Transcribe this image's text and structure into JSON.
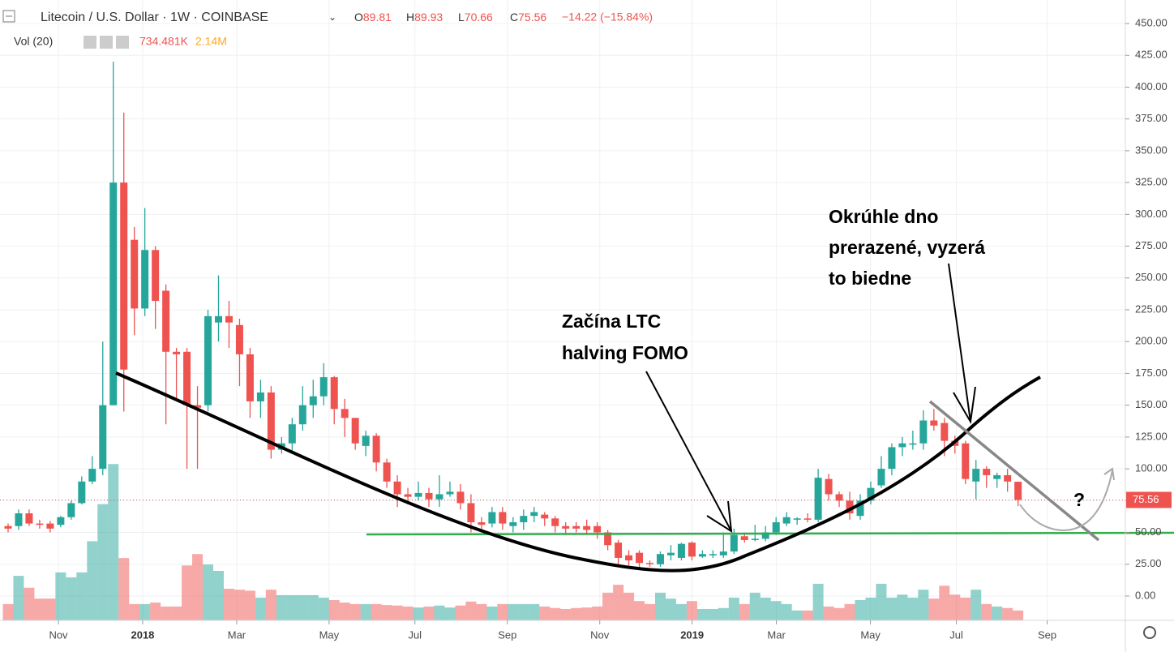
{
  "header": {
    "symbol": "Litecoin / U.S. Dollar · 1W · COINBASE",
    "ohlc": [
      {
        "label": "O",
        "value": 89.81
      },
      {
        "label": "H",
        "value": 89.93
      },
      {
        "label": "L",
        "value": 70.66
      },
      {
        "label": "C",
        "value": 75.56
      }
    ],
    "change": "−14.22 (−15.84%)",
    "volume_label": "Vol (20)",
    "volume_value": "734.481K",
    "volume_ma": "2.14M"
  },
  "annotations": {
    "fomo": [
      "Začína LTC",
      "halving FOMO"
    ],
    "bottom": [
      "Okrúhle dno",
      "prerazené, vyzerá",
      "to biedne"
    ],
    "question": "?"
  },
  "chart_data": {
    "type": "candlestick",
    "up_color": "#26a69a",
    "down_color": "#ef5350",
    "last_price": 75.56,
    "grid": true,
    "xlim": [
      -0.77,
      106.2
    ],
    "xticks": [
      {
        "value": 4.78,
        "label": "Nov"
      },
      {
        "value": 12.79,
        "label": "2018"
      },
      {
        "value": 21.73,
        "label": "Mar"
      },
      {
        "value": 30.51,
        "label": "May"
      },
      {
        "value": 38.67,
        "label": "Jul"
      },
      {
        "value": 47.46,
        "label": "Sep"
      },
      {
        "value": 56.24,
        "label": "Nov"
      },
      {
        "value": 65.02,
        "label": "2019"
      },
      {
        "value": 73.03,
        "label": "Mar"
      },
      {
        "value": 81.97,
        "label": "May"
      },
      {
        "value": 90.14,
        "label": "Jul"
      },
      {
        "value": 98.77,
        "label": "Sep"
      }
    ],
    "ylim": [
      0,
      450
    ],
    "yticks": [
      {
        "value": 0,
        "label": "0.00"
      },
      {
        "value": 25,
        "label": "25.00"
      },
      {
        "value": 50,
        "label": "50.00"
      },
      {
        "value": 75,
        "label": "75.00"
      },
      {
        "value": 100,
        "label": "100.00"
      },
      {
        "value": 125,
        "label": "125.00"
      },
      {
        "value": 150,
        "label": "150.00"
      },
      {
        "value": 175,
        "label": "175.00"
      },
      {
        "value": 200,
        "label": "200.00"
      },
      {
        "value": 225,
        "label": "225.00"
      },
      {
        "value": 250,
        "label": "250.00"
      },
      {
        "value": 275,
        "label": "275.00"
      },
      {
        "value": 300,
        "label": "300.00"
      },
      {
        "value": 325,
        "label": "325.00"
      },
      {
        "value": 350,
        "label": "350.00"
      },
      {
        "value": 375,
        "label": "375.00"
      },
      {
        "value": 400,
        "label": "400.00"
      },
      {
        "value": 425,
        "label": "425.00"
      },
      {
        "value": 450,
        "label": "450.00"
      }
    ],
    "open": [
      55,
      55,
      65,
      57,
      57,
      56,
      62,
      73,
      90,
      100,
      150,
      325,
      280,
      226,
      272,
      240,
      192,
      192,
      150,
      150,
      215,
      220,
      213,
      190,
      153,
      160,
      115,
      120,
      135,
      150,
      157,
      172,
      147,
      140,
      118,
      126,
      105,
      90,
      80,
      78,
      81,
      76,
      80,
      82,
      73,
      58,
      57,
      66,
      55,
      58,
      63,
      64,
      61,
      55,
      55,
      55,
      55,
      50,
      42,
      32,
      34,
      26,
      25,
      32,
      30,
      42,
      31,
      32,
      32,
      35,
      47,
      44,
      45,
      50,
      57,
      60,
      61,
      60,
      92,
      80,
      75,
      63,
      75,
      87,
      100,
      117,
      119,
      120,
      138,
      136,
      122,
      120,
      90,
      100,
      92,
      95,
      89.81
    ],
    "high": [
      57,
      68,
      68,
      60,
      59,
      63,
      75,
      94,
      110,
      200,
      420,
      380,
      290,
      305,
      275,
      245,
      195,
      195,
      165,
      225,
      252,
      232,
      218,
      195,
      170,
      165,
      125,
      140,
      165,
      170,
      183,
      173,
      155,
      140,
      130,
      128,
      108,
      95,
      85,
      90,
      85,
      95,
      90,
      88,
      80,
      62,
      70,
      70,
      62,
      68,
      70,
      66,
      63,
      58,
      58,
      60,
      58,
      52,
      44,
      36,
      36,
      28,
      35,
      40,
      42,
      43,
      36,
      36,
      50,
      53,
      50,
      56,
      55,
      62,
      66,
      62,
      65,
      100,
      96,
      82,
      82,
      80,
      90,
      110,
      120,
      125,
      130,
      146,
      147,
      140,
      126,
      122,
      107,
      102,
      97,
      100,
      89.93
    ],
    "low": [
      50,
      52,
      55,
      53,
      50,
      54,
      60,
      72,
      88,
      95,
      150,
      145,
      205,
      220,
      210,
      135,
      155,
      100,
      100,
      145,
      200,
      195,
      165,
      140,
      140,
      108,
      112,
      112,
      130,
      140,
      150,
      135,
      125,
      115,
      110,
      98,
      85,
      70,
      72,
      75,
      70,
      70,
      78,
      68,
      50,
      50,
      54,
      52,
      50,
      52,
      58,
      55,
      50,
      48,
      50,
      48,
      45,
      36,
      25,
      24,
      22,
      23,
      23,
      28,
      28,
      28,
      30,
      30,
      30,
      33,
      42,
      43,
      43,
      48,
      55,
      56,
      58,
      58,
      75,
      70,
      60,
      60,
      72,
      85,
      95,
      110,
      115,
      115,
      130,
      110,
      112,
      88,
      76,
      85,
      85,
      82,
      70.66
    ],
    "close": [
      53,
      65,
      57,
      56,
      53,
      62,
      73,
      90,
      100,
      150,
      325,
      178,
      226,
      272,
      232,
      192,
      190,
      150,
      148,
      220,
      220,
      215,
      190,
      153,
      160,
      115,
      120,
      135,
      150,
      157,
      172,
      147,
      140,
      120,
      126,
      105,
      90,
      80,
      78,
      81,
      76,
      80,
      82,
      73,
      58,
      56,
      66,
      57,
      58,
      63,
      66,
      61,
      55,
      53,
      53,
      52,
      50,
      40,
      30,
      28,
      26,
      25,
      33,
      34,
      41,
      31,
      33,
      33,
      35,
      48,
      44,
      45,
      50,
      58,
      62,
      61,
      60,
      93,
      80,
      75,
      65,
      75,
      85,
      100,
      117,
      120,
      120,
      138,
      134,
      122,
      118,
      92,
      100,
      95,
      95,
      90,
      75.56
    ],
    "volume": [
      0.33,
      0.9,
      0.66,
      0.44,
      0.44,
      0.97,
      0.87,
      0.97,
      1.6,
      2.35,
      3.16,
      1.26,
      0.33,
      0.33,
      0.36,
      0.28,
      0.28,
      1.11,
      1.34,
      1.13,
      1.0,
      0.64,
      0.62,
      0.6,
      0.46,
      0.62,
      0.51,
      0.51,
      0.51,
      0.51,
      0.46,
      0.41,
      0.36,
      0.33,
      0.33,
      0.33,
      0.31,
      0.3,
      0.28,
      0.26,
      0.28,
      0.3,
      0.26,
      0.3,
      0.38,
      0.33,
      0.28,
      0.33,
      0.33,
      0.33,
      0.33,
      0.28,
      0.25,
      0.23,
      0.25,
      0.26,
      0.28,
      0.56,
      0.72,
      0.56,
      0.39,
      0.33,
      0.56,
      0.44,
      0.33,
      0.39,
      0.23,
      0.23,
      0.25,
      0.46,
      0.33,
      0.56,
      0.46,
      0.39,
      0.33,
      0.2,
      0.2,
      0.74,
      0.28,
      0.25,
      0.33,
      0.41,
      0.46,
      0.74,
      0.46,
      0.52,
      0.46,
      0.62,
      0.44,
      0.7,
      0.52,
      0.46,
      0.62,
      0.33,
      0.28,
      0.25,
      0.2
    ]
  }
}
